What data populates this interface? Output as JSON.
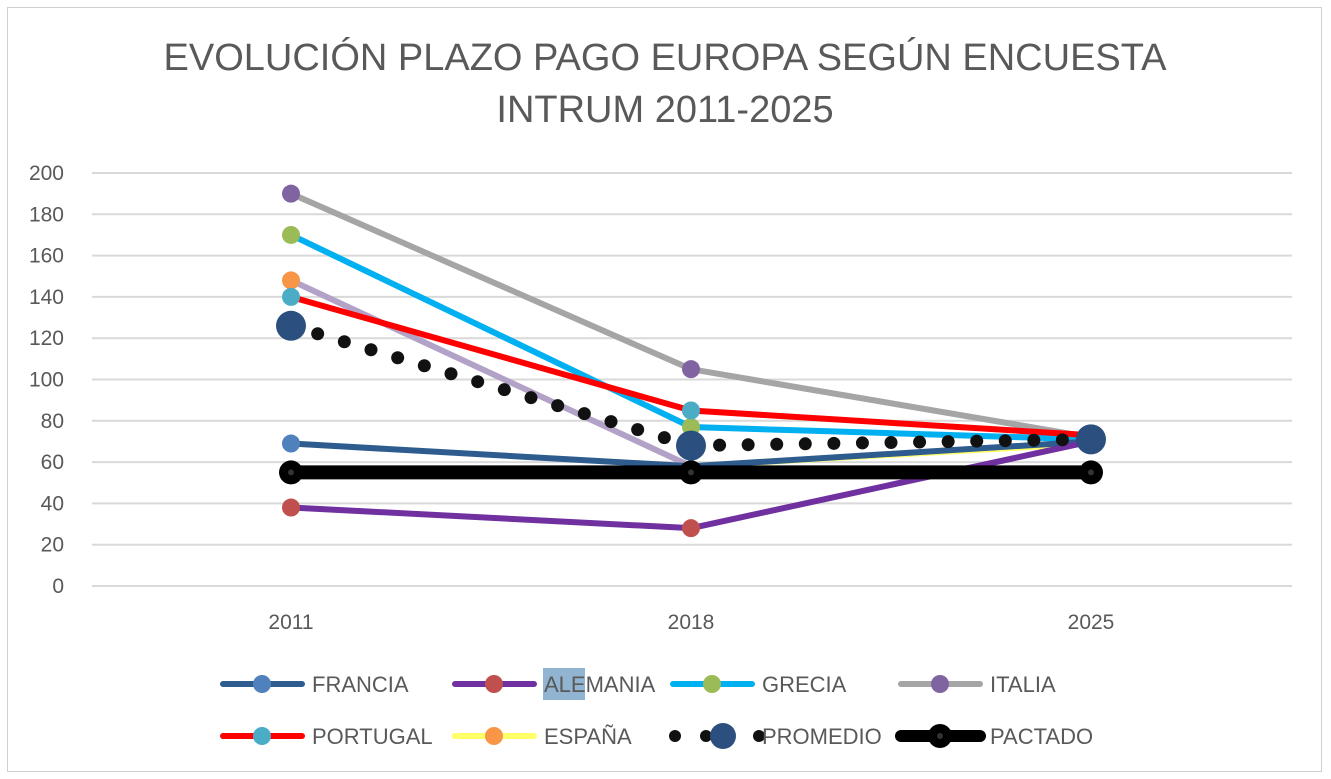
{
  "chart_data": {
    "type": "line",
    "title_lines": [
      "EVOLUCIÓN PLAZO PAGO EUROPA SEGÚN ENCUESTA",
      "INTRUM 2011-2025"
    ],
    "categories": [
      "2011",
      "2018",
      "2025"
    ],
    "ylim": [
      0,
      200
    ],
    "yticks": [
      0,
      20,
      40,
      60,
      80,
      100,
      120,
      140,
      160,
      180,
      200
    ],
    "grid": true,
    "legend_position": "bottom",
    "series": [
      {
        "name": "FRANCIA",
        "values": [
          69,
          58,
          70
        ],
        "line_color": "#2F5C8F",
        "marker_color": "#4F81BD",
        "markers": [
          true,
          false,
          false
        ],
        "dotted": false
      },
      {
        "name": "ALEMANIA",
        "values": [
          38,
          28,
          70
        ],
        "line_color": "#7030A0",
        "marker_color": "#C0504D",
        "markers": [
          true,
          true,
          false
        ],
        "dotted": false
      },
      {
        "name": "GRECIA",
        "values": [
          170,
          77,
          71
        ],
        "line_color": "#00B0F0",
        "marker_color": "#9BBB59",
        "markers": [
          true,
          true,
          false
        ],
        "dotted": false
      },
      {
        "name": "ITALIA",
        "values": [
          190,
          105,
          72
        ],
        "line_color": "#A5A5A5",
        "marker_color": "#8064A2",
        "markers": [
          true,
          true,
          false
        ],
        "dotted": false
      },
      {
        "name": "PORTUGAL",
        "values": [
          140,
          85,
          73
        ],
        "line_color": "#FF0000",
        "marker_color": "#4BACC6",
        "markers": [
          true,
          true,
          false
        ],
        "dotted": false
      },
      {
        "name": "ESPAÑA",
        "values": [
          148,
          58,
          69
        ],
        "line_color": "#FFFF66",
        "first_segment_color": "#B3A2C7",
        "marker_color": "#F79646",
        "markers": [
          true,
          false,
          false
        ],
        "dotted": false
      },
      {
        "name": "PROMEDIO",
        "values": [
          126,
          68,
          71
        ],
        "line_color": "#111111",
        "marker_color": "#2B4F7E",
        "markers": [
          true,
          true,
          true
        ],
        "dotted": true
      },
      {
        "name": "PACTADO",
        "values": [
          55,
          55,
          55
        ],
        "line_color": "#000000",
        "marker_color": "#000000",
        "markers": [
          true,
          true,
          true
        ],
        "dotted": false
      }
    ],
    "selected_text": "ALE"
  }
}
